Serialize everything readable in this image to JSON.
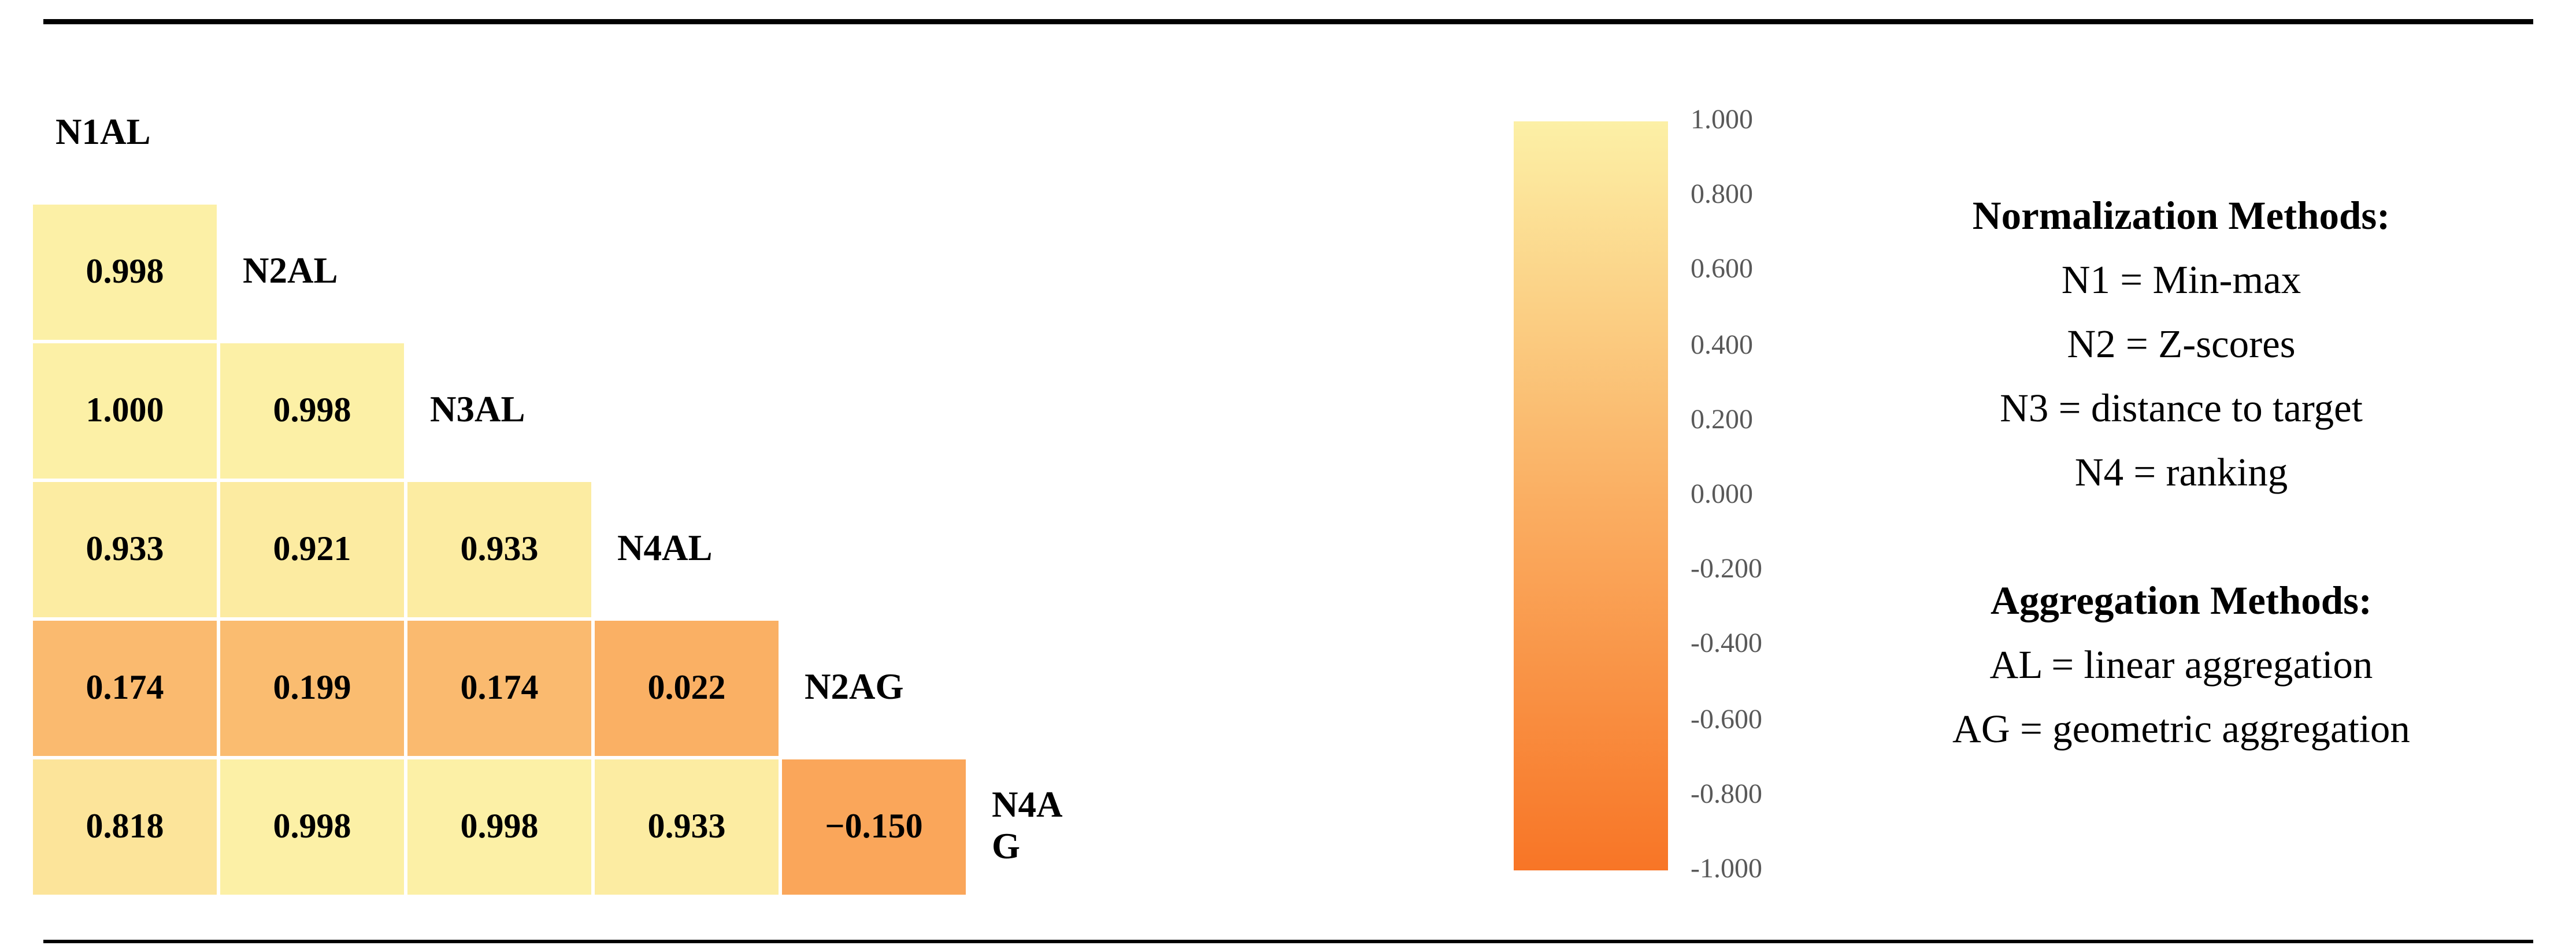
{
  "chart_data": {
    "type": "heatmap",
    "layout": "lower-triangular correlation matrix with diagonal variable labels",
    "variables": [
      "N1AL",
      "N2AL",
      "N3AL",
      "N4AL",
      "N2AG",
      "N4AG"
    ],
    "top_label": "N1AL",
    "rows": [
      {
        "label": "N2AL",
        "cells": [
          {
            "value": 0.998,
            "text": "0.998"
          }
        ]
      },
      {
        "label": "N3AL",
        "cells": [
          {
            "value": 1.0,
            "text": "1.000"
          },
          {
            "value": 0.998,
            "text": "0.998"
          }
        ]
      },
      {
        "label": "N4AL",
        "cells": [
          {
            "value": 0.933,
            "text": "0.933"
          },
          {
            "value": 0.921,
            "text": "0.921"
          },
          {
            "value": 0.933,
            "text": "0.933"
          }
        ]
      },
      {
        "label": "N2AG",
        "cells": [
          {
            "value": 0.174,
            "text": "0.174"
          },
          {
            "value": 0.199,
            "text": "0.199"
          },
          {
            "value": 0.174,
            "text": "0.174"
          },
          {
            "value": 0.022,
            "text": "0.022"
          }
        ]
      },
      {
        "label": "N4AG",
        "label_display": "N4A\nG",
        "cells": [
          {
            "value": 0.818,
            "text": "0.818"
          },
          {
            "value": 0.998,
            "text": "0.998"
          },
          {
            "value": 0.998,
            "text": "0.998"
          },
          {
            "value": 0.933,
            "text": "0.933"
          },
          {
            "value": -0.15,
            "text": "−0.150"
          }
        ]
      }
    ],
    "colorbar": {
      "min": -1.0,
      "max": 1.0,
      "tick_labels": [
        "1.000",
        "0.800",
        "0.600",
        "0.400",
        "0.200",
        "0.000",
        "-0.200",
        "-0.400",
        "-0.600",
        "-0.800",
        "-1.000"
      ],
      "colors": {
        "top": "#FCF0A6",
        "mid": "#FAAF63",
        "bottom": "#F87526"
      },
      "legend_position": "right"
    }
  },
  "legend": {
    "normalization": {
      "title": "Normalization Methods:",
      "items": [
        "N1 = Min-max",
        "N2 = Z-scores",
        "N3 = distance to target",
        "N4 = ranking"
      ]
    },
    "aggregation": {
      "title": "Aggregation Methods:",
      "items": [
        "AL = linear aggregation",
        "AG = geometric aggregation"
      ]
    }
  },
  "colors": {
    "cell_text": "#000000",
    "tick_text": "#595959",
    "rule": "#000000",
    "background": "#FFFFFF"
  }
}
